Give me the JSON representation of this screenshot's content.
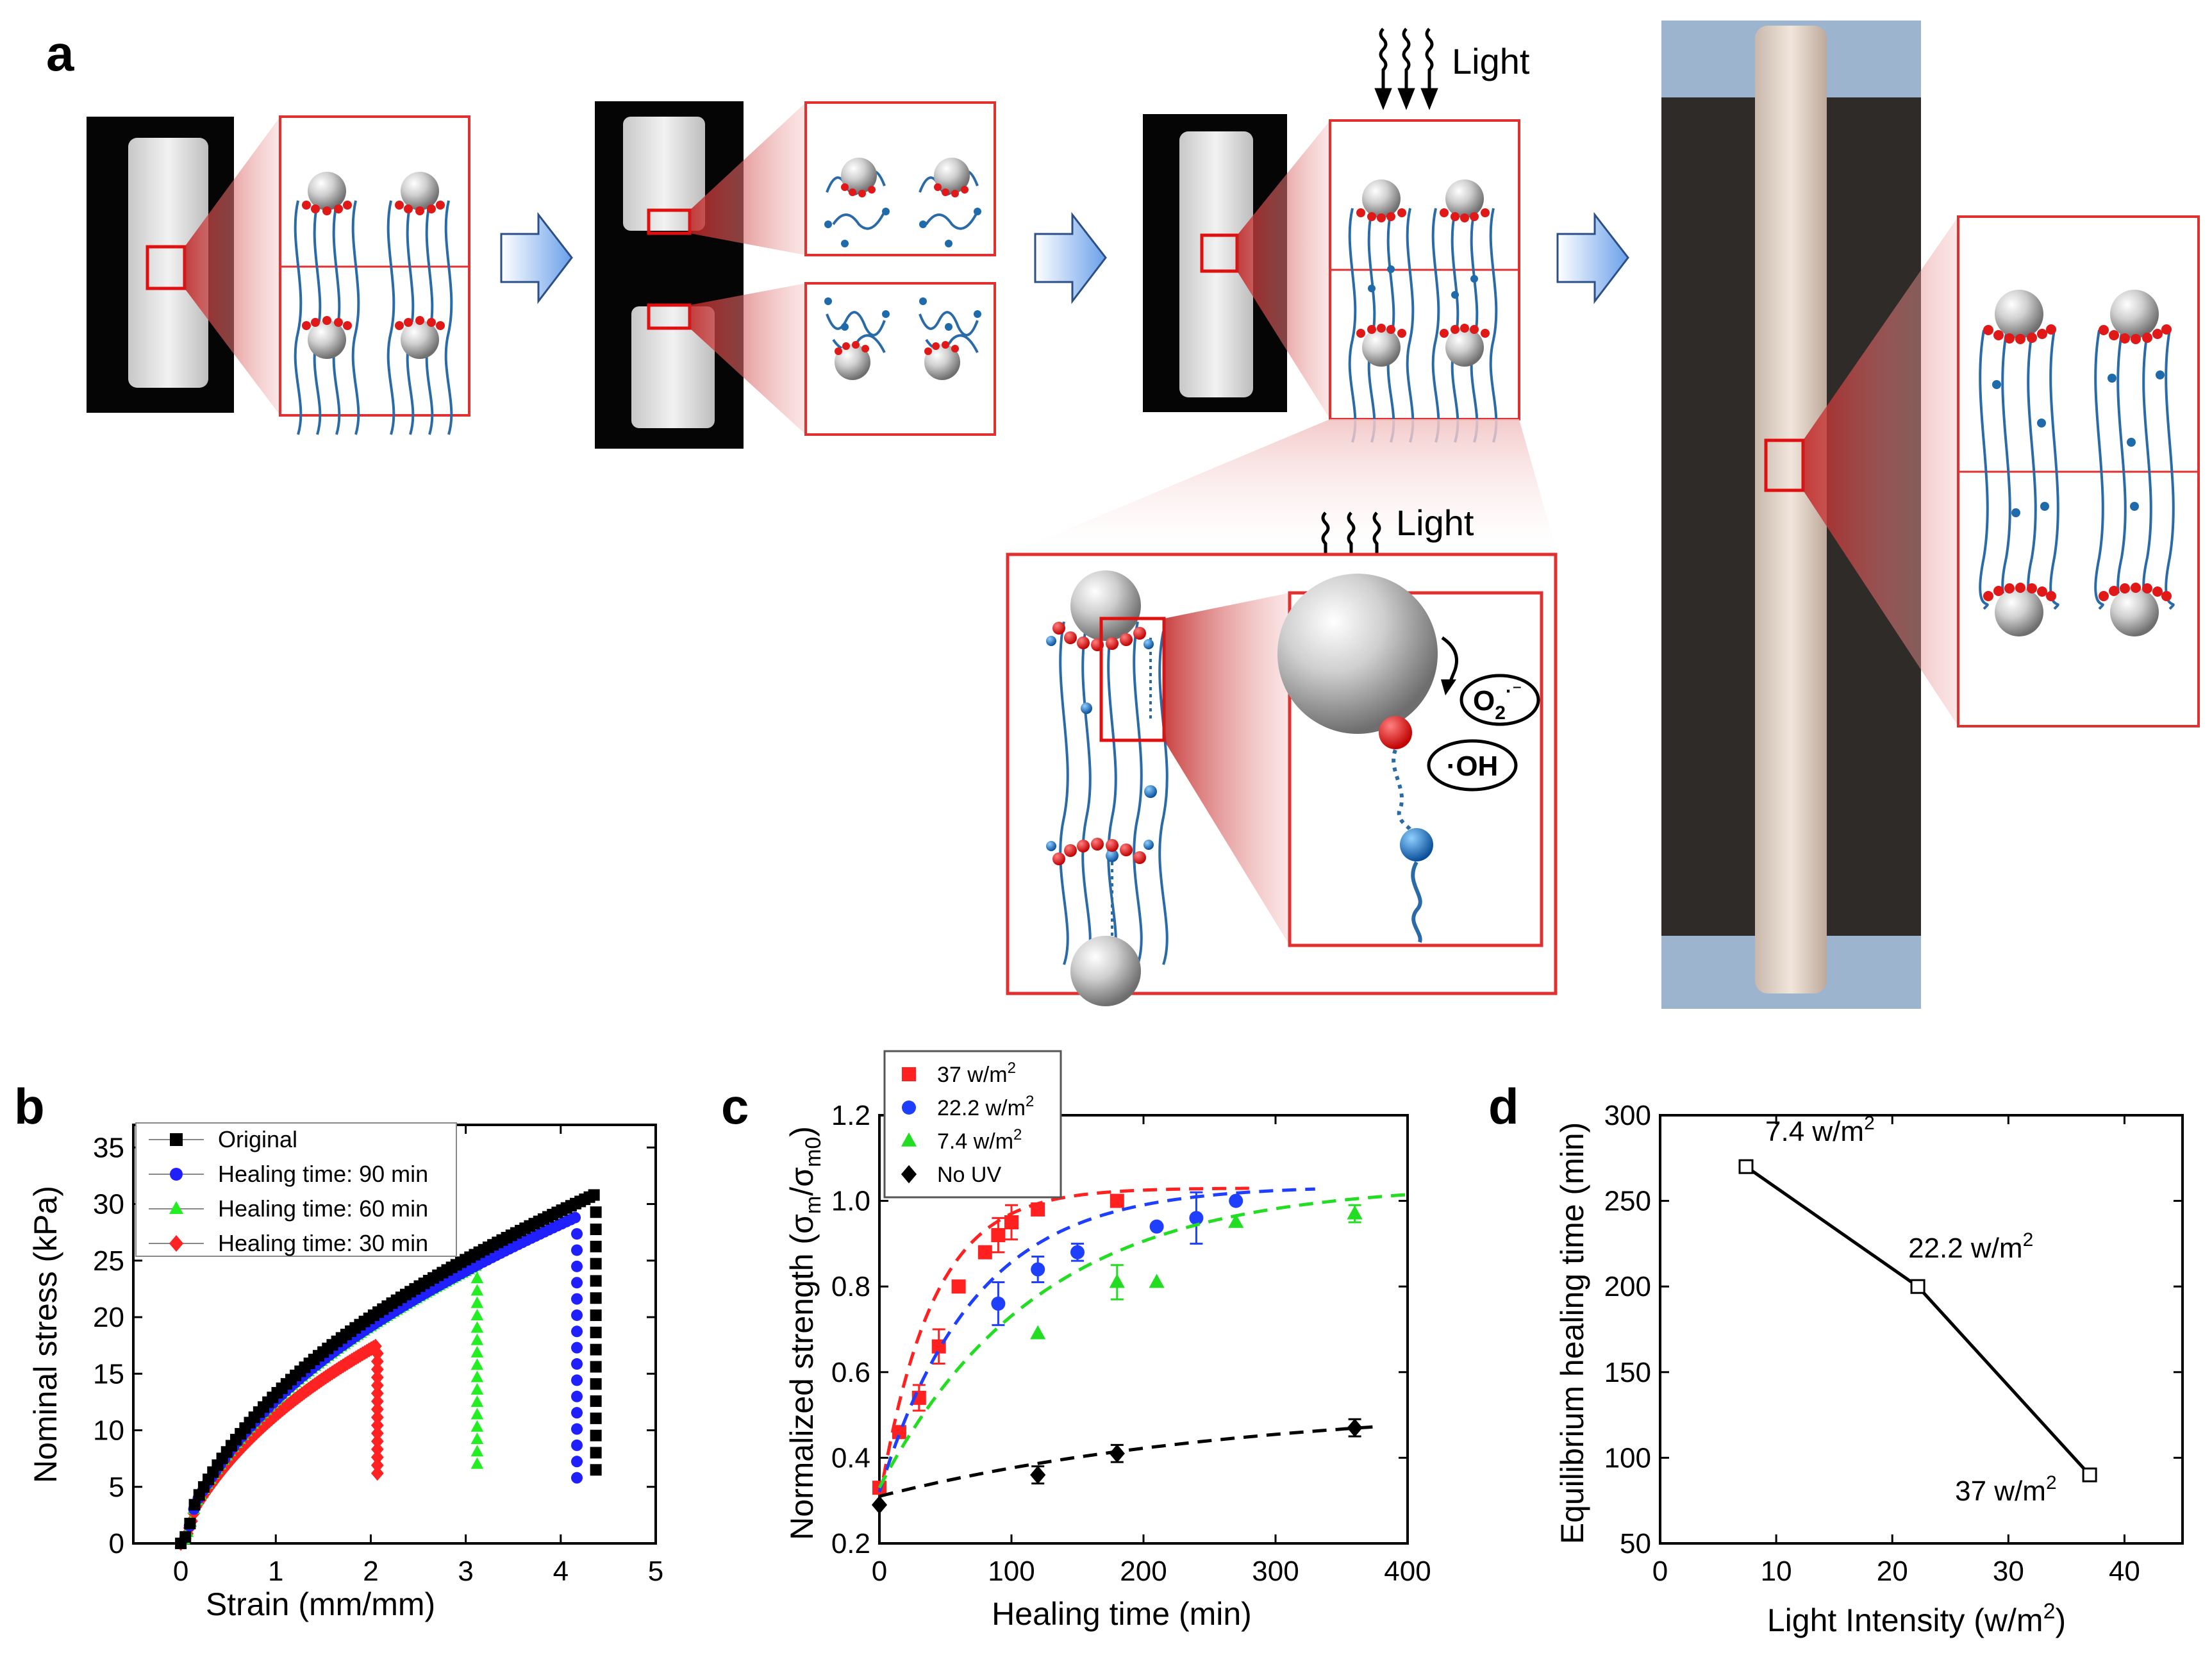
{
  "panel_labels": {
    "a": "a",
    "b": "b",
    "c": "c",
    "d": "d"
  },
  "panel_a": {
    "light_top": "Light",
    "light_zoom": "Light",
    "radical_superoxide": "O2·⁻",
    "radical_superoxide_base": "O",
    "radical_superoxide_sub": "2",
    "radical_superoxide_sup": "·⁻",
    "radical_hydroxyl": "·OH"
  },
  "chart_data": [
    {
      "id": "b",
      "type": "scatter",
      "title": "",
      "xlabel": "Strain (mm/mm)",
      "ylabel": "Nominal stress (kPa)",
      "xlim": [
        -0.5,
        5
      ],
      "ylim": [
        0,
        37
      ],
      "xticks": [
        "0",
        "1",
        "2",
        "3",
        "4",
        "5"
      ],
      "xtick_values": [
        0,
        1,
        2,
        3,
        4,
        5
      ],
      "yticks": [
        "0",
        "5",
        "10",
        "15",
        "20",
        "25",
        "30",
        "35"
      ],
      "ytick_values": [
        0,
        5,
        10,
        15,
        20,
        25,
        30,
        35
      ],
      "legend_position": "top-left",
      "series": [
        {
          "name": "Original",
          "color": "#000000",
          "marker": "square",
          "break_x": 4.35,
          "peak": 30.8,
          "end": 6.5
        },
        {
          "name": "Healing time: 90 min",
          "color": "#1f1fff",
          "marker": "circle",
          "break_x": 4.15,
          "peak": 28.8,
          "end": 5.8
        },
        {
          "name": "Healing time: 60 min",
          "color": "#22ee22",
          "marker": "triangle",
          "break_x": 3.1,
          "peak": 24.5,
          "end": 7.0
        },
        {
          "name": "Healing time: 30 min",
          "color": "#ff2222",
          "marker": "diamond",
          "break_x": 2.05,
          "peak": 17.5,
          "end": 6.2
        }
      ]
    },
    {
      "id": "c",
      "type": "scatter",
      "title": "",
      "xlabel": "Healing time (min)",
      "ylabel": "Normalized strength (σm/σm0)",
      "ylabel_parts": {
        "prefix": "Normalized strength (σ",
        "sub1": "m",
        "mid": "/σ",
        "sub2": "m0",
        "suffix": ")"
      },
      "xlim": [
        0,
        400
      ],
      "ylim": [
        0.2,
        1.2
      ],
      "xticks": [
        "0",
        "100",
        "200",
        "300",
        "400"
      ],
      "xtick_values": [
        0,
        100,
        200,
        300,
        400
      ],
      "yticks": [
        "0.2",
        "0.4",
        "0.6",
        "0.8",
        "1.0",
        "1.2"
      ],
      "ytick_values": [
        0.2,
        0.4,
        0.6,
        0.8,
        1.0,
        1.2
      ],
      "legend_position": "top-left",
      "series": [
        {
          "name": "37 w/m2",
          "legend_base": "37 w/m",
          "legend_sup": "2",
          "color": "#ff2020",
          "marker": "square",
          "x": [
            0,
            15,
            30,
            45,
            60,
            80,
            90,
            100,
            120,
            180
          ],
          "y": [
            0.33,
            0.46,
            0.54,
            0.66,
            0.8,
            0.88,
            0.92,
            0.95,
            0.98,
            1.0
          ],
          "err": [
            0,
            0,
            0.03,
            0.04,
            0,
            0,
            0.04,
            0.04,
            0,
            0
          ],
          "fit": {
            "y0": 0.3,
            "A": 0.73,
            "tau": 40,
            "xmax": 280
          }
        },
        {
          "name": "22.2 w/m2",
          "legend_base": "22.2 w/m",
          "legend_sup": "2",
          "color": "#1f3fff",
          "marker": "circle",
          "x": [
            90,
            120,
            150,
            210,
            240,
            270
          ],
          "y": [
            0.76,
            0.84,
            0.88,
            0.94,
            0.96,
            1.0
          ],
          "err": [
            0.05,
            0.03,
            0.02,
            0,
            0.06,
            0
          ],
          "fit": {
            "y0": 0.32,
            "A": 0.715,
            "tau": 72,
            "xmax": 330
          }
        },
        {
          "name": "7.4 w/m2",
          "legend_base": "7.4 w/m",
          "legend_sup": "2",
          "color": "#22dd22",
          "marker": "triangle",
          "x": [
            120,
            180,
            210,
            270,
            360
          ],
          "y": [
            0.69,
            0.81,
            0.81,
            0.95,
            0.97
          ],
          "err": [
            0,
            0.04,
            0,
            0,
            0.02
          ],
          "fit": {
            "y0": 0.33,
            "A": 0.71,
            "tau": 120,
            "xmax": 400
          }
        },
        {
          "name": "No UV",
          "legend_base": "No UV",
          "legend_sup": "",
          "color": "#000000",
          "marker": "diamond",
          "x": [
            0,
            120,
            180,
            360
          ],
          "y": [
            0.29,
            0.36,
            0.41,
            0.47
          ],
          "err": [
            0,
            0.02,
            0.02,
            0.02
          ],
          "fit": {
            "y0": 0.31,
            "A": 0.22,
            "tau": 280,
            "xmax": 380
          }
        }
      ]
    },
    {
      "id": "d",
      "type": "line",
      "title": "",
      "xlabel": "Light Intensity (w/m2)",
      "xlabel_parts": {
        "prefix": "Light Intensity (w/m",
        "sup": "2",
        "suffix": ")"
      },
      "ylabel": "Equilibrium healing time (min)",
      "xlim": [
        0,
        45
      ],
      "ylim": [
        50,
        300
      ],
      "xticks": [
        "0",
        "10",
        "20",
        "30",
        "40"
      ],
      "xtick_values": [
        0,
        10,
        20,
        30,
        40
      ],
      "yticks": [
        "50",
        "100",
        "150",
        "200",
        "250",
        "300"
      ],
      "ytick_values": [
        50,
        100,
        150,
        200,
        250,
        300
      ],
      "series": [
        {
          "color": "#000000",
          "marker": "open-square",
          "x": [
            7.4,
            22.2,
            37
          ],
          "y": [
            270,
            200,
            90
          ],
          "labels": [
            {
              "base": "7.4 w/m",
              "sup": "2"
            },
            {
              "base": "22.2 w/m",
              "sup": "2"
            },
            {
              "base": "37 w/m",
              "sup": "2"
            }
          ]
        }
      ]
    }
  ]
}
